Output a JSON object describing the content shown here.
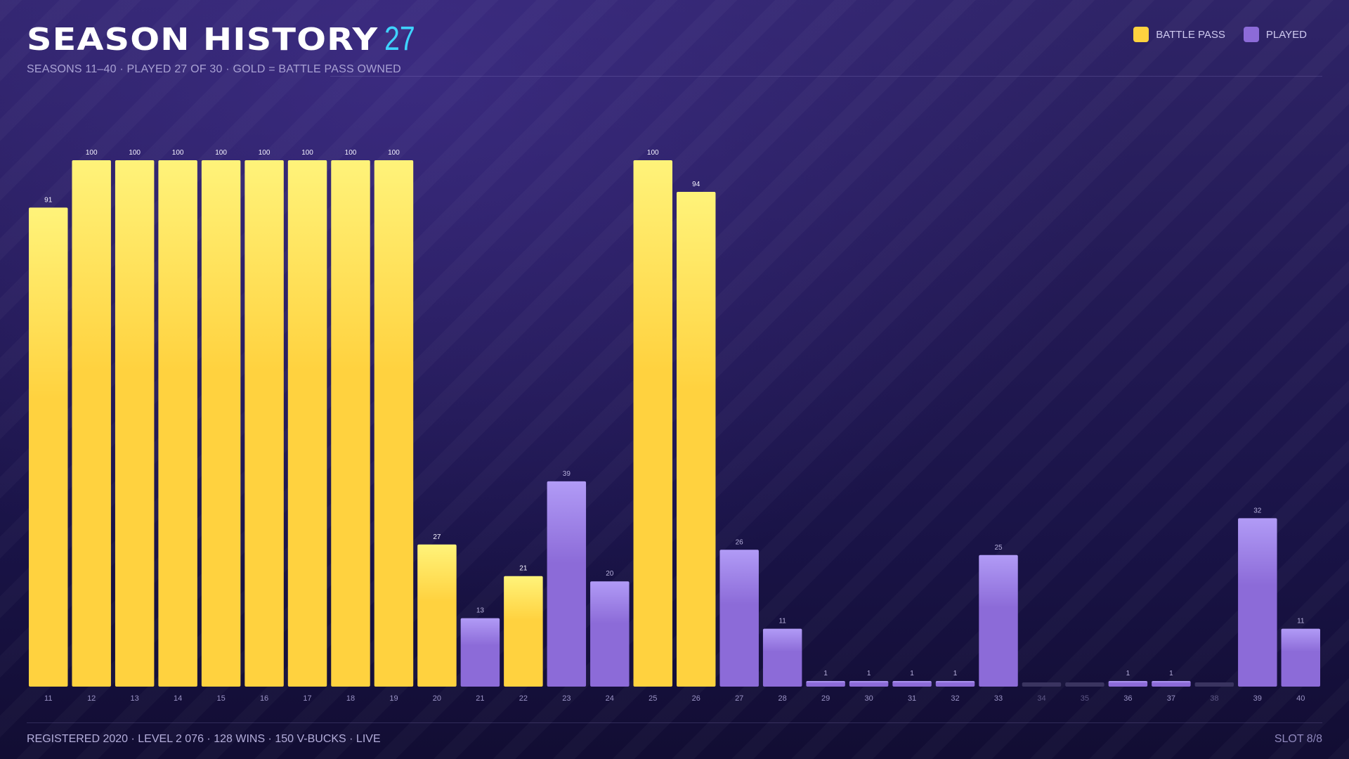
{
  "header": {
    "title": "SEASON HISTORY",
    "count": "27",
    "subtitle": "SEASONS 11–40 · PLAYED 27 OF 30 · GOLD = BATTLE PASS OWNED"
  },
  "legend": {
    "battle_pass_label": "BATTLE PASS",
    "played_label": "PLAYED"
  },
  "colors": {
    "battle_pass": "#ffd23f",
    "battle_pass_top": "#fff37a",
    "played": "#8c6bd8",
    "played_top": "#b19bf6",
    "unplayed": "#3a3460",
    "count_accent": "#3fd3ff"
  },
  "chart_data": {
    "type": "bar",
    "categories": [
      "11",
      "12",
      "13",
      "14",
      "15",
      "16",
      "17",
      "18",
      "19",
      "20",
      "21",
      "22",
      "23",
      "24",
      "25",
      "26",
      "27",
      "28",
      "29",
      "30",
      "31",
      "32",
      "33",
      "34",
      "35",
      "36",
      "37",
      "38",
      "39",
      "40"
    ],
    "values": [
      91,
      100,
      100,
      100,
      100,
      100,
      100,
      100,
      100,
      27,
      13,
      21,
      39,
      20,
      100,
      94,
      26,
      11,
      1,
      1,
      1,
      1,
      25,
      null,
      null,
      1,
      1,
      null,
      32,
      11
    ],
    "battle_pass": [
      true,
      true,
      true,
      true,
      true,
      true,
      true,
      true,
      true,
      true,
      false,
      true,
      false,
      false,
      true,
      true,
      false,
      false,
      false,
      false,
      false,
      false,
      false,
      false,
      false,
      false,
      false,
      false,
      false,
      false
    ],
    "ylim": [
      0,
      100
    ],
    "grid": false,
    "legend_position": "top-right"
  },
  "footer": {
    "text": "REGISTERED 2020 · LEVEL 2 076 · 128 WINS · 150 V-BUCKS · LIVE",
    "slot": "SLOT 8/8"
  }
}
